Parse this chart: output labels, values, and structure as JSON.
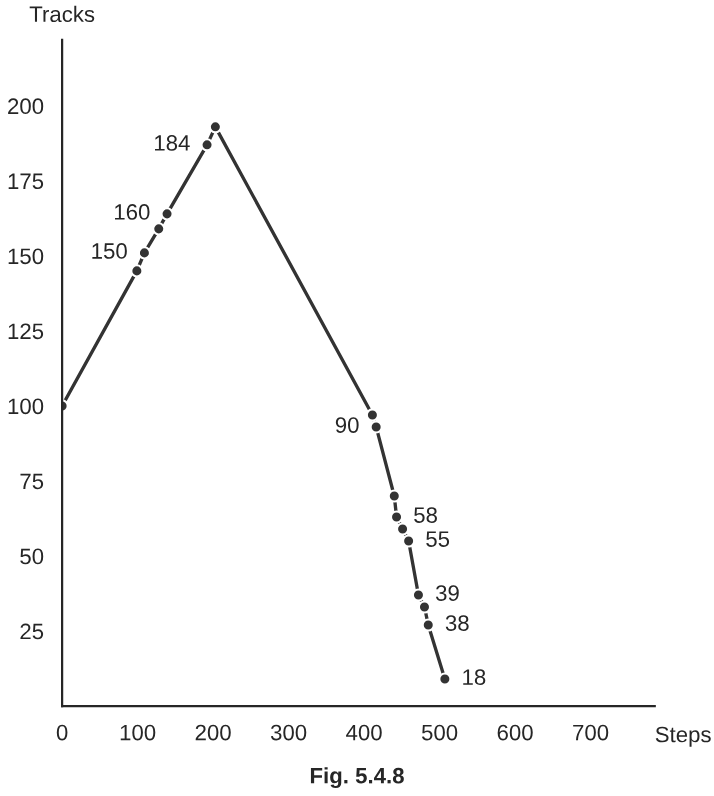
{
  "chart_data": {
    "type": "line",
    "xlabel": "Steps",
    "ylabel": "Tracks",
    "x": [
      0,
      99,
      109,
      128,
      139,
      192,
      203,
      411,
      416,
      440,
      443,
      451,
      459,
      472,
      480,
      485,
      507
    ],
    "values": [
      100,
      145,
      151,
      159,
      164,
      187,
      193,
      97,
      93,
      70,
      63,
      59,
      55,
      37,
      33,
      27,
      9
    ],
    "color": "#333333",
    "marker": "circle",
    "line_style": "solid",
    "xlim": [
      0,
      785
    ],
    "ylim": [
      0,
      222
    ],
    "xticks": [
      0,
      100,
      200,
      300,
      400,
      500,
      600,
      700
    ],
    "yticks": [
      25,
      50,
      75,
      100,
      125,
      150,
      175,
      200
    ],
    "grid": false,
    "annotations": [
      {
        "text": "150",
        "x": 109,
        "y": 151
      },
      {
        "text": "160",
        "x": 139,
        "y": 164
      },
      {
        "text": "184",
        "x": 192,
        "y": 187
      },
      {
        "text": "90",
        "x": 416,
        "y": 93
      },
      {
        "text": "58",
        "x": 443,
        "y": 63
      },
      {
        "text": "55",
        "x": 459,
        "y": 55
      },
      {
        "text": "39",
        "x": 472,
        "y": 37
      },
      {
        "text": "38",
        "x": 485,
        "y": 27
      },
      {
        "text": "18",
        "x": 507,
        "y": 9
      },
      "Fig. 5.4.8"
    ]
  }
}
